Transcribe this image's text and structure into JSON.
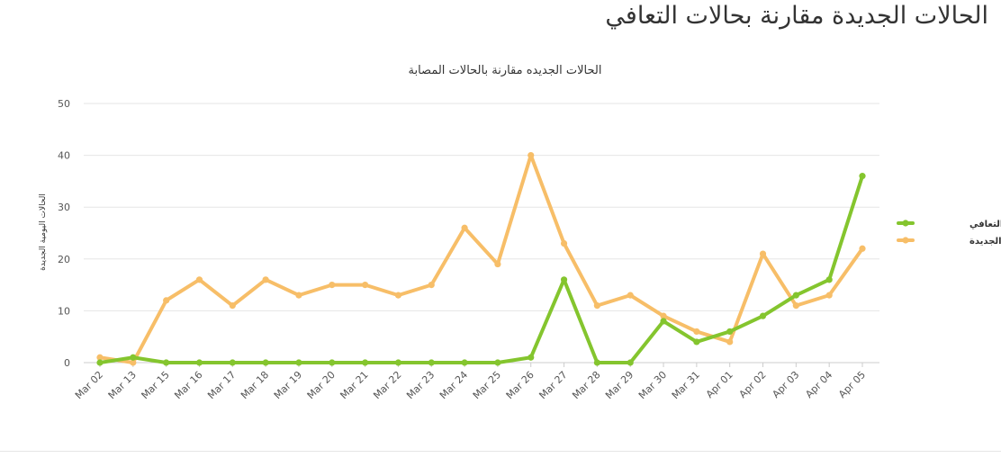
{
  "page": {
    "heading": "الحالات الجديدة مقارنة بحالات التعافي"
  },
  "colors": {
    "recovered": "#84c52e",
    "new_cases": "#f7be68",
    "grid": "#e6e6e6",
    "axis": "#cccccc"
  },
  "chart_data": {
    "type": "line",
    "title": "الحالات الجديده مقارنة بالحالات المصابة",
    "xlabel": "",
    "ylabel": "الحالات اليومية الجديدة",
    "ylim": [
      0,
      50
    ],
    "yticks": [
      0,
      10,
      20,
      30,
      40,
      50
    ],
    "grid": true,
    "legend_position": "right",
    "categories": [
      "Mar 02",
      "Mar 13",
      "Mar 15",
      "Mar 16",
      "Mar 17",
      "Mar 18",
      "Mar 19",
      "Mar 20",
      "Mar 21",
      "Mar 22",
      "Mar 23",
      "Mar 24",
      "Mar 25",
      "Mar 26",
      "Mar 27",
      "Mar 28",
      "Mar 29",
      "Mar 30",
      "Mar 31",
      "Apr 01",
      "Apr 02",
      "Apr 03",
      "Apr 04",
      "Apr 05"
    ],
    "series": [
      {
        "name": "حالات التعافي",
        "color": "#84c52e",
        "values": [
          0,
          1,
          0,
          0,
          0,
          0,
          0,
          0,
          0,
          0,
          0,
          0,
          0,
          1,
          16,
          0,
          0,
          8,
          4,
          6,
          9,
          13,
          16,
          36
        ]
      },
      {
        "name": "الحالات الجديدة",
        "color": "#f7be68",
        "values": [
          1,
          0,
          12,
          16,
          11,
          16,
          13,
          15,
          15,
          13,
          15,
          26,
          19,
          40,
          23,
          11,
          13,
          9,
          6,
          4,
          21,
          11,
          13,
          22
        ]
      }
    ]
  }
}
